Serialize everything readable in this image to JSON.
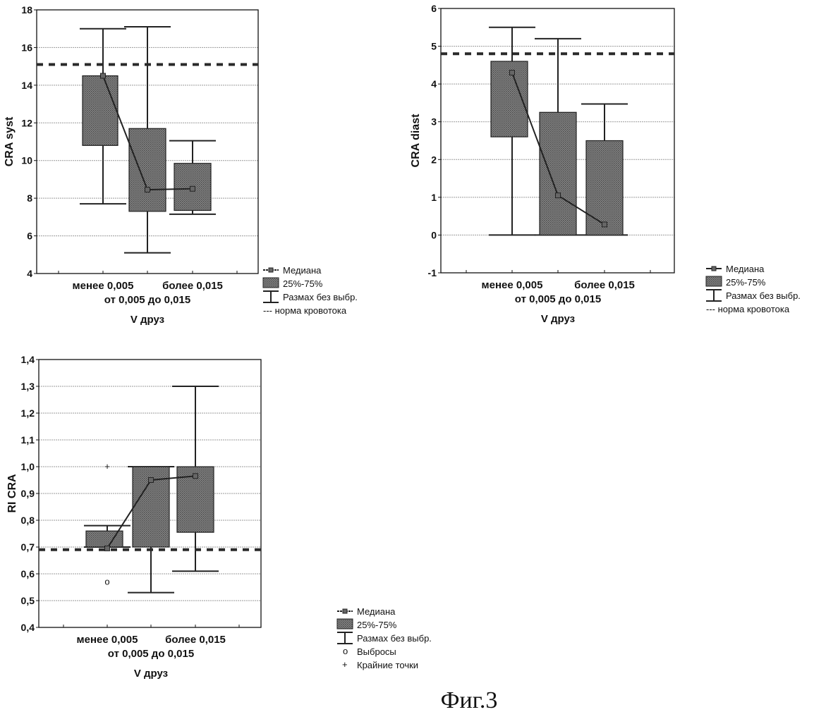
{
  "caption": "Фиг.3",
  "chart_data": [
    {
      "type": "boxplot",
      "ylabel": "CRA syst",
      "xlabel": "V друз",
      "categories": [
        "менее 0,005",
        "от 0,005 до 0,015",
        "более 0,015"
      ],
      "ylim": [
        4,
        18
      ],
      "yticks": [
        4,
        6,
        8,
        10,
        12,
        14,
        16,
        18
      ],
      "ytick_labels": [
        "4",
        "6",
        "8",
        "10",
        "12",
        "14",
        "16",
        "18"
      ],
      "grid": true,
      "norm_line": 15.1,
      "series": [
        {
          "name": "Медиана",
          "values": [
            14.5,
            8.45,
            8.5
          ]
        },
        {
          "name": "25%-75%",
          "q1": [
            10.8,
            7.3,
            7.35
          ],
          "q3": [
            14.5,
            11.7,
            9.85
          ]
        },
        {
          "name": "Размах без выбр.",
          "min": [
            7.7,
            5.1,
            7.15
          ],
          "max": [
            17.0,
            17.1,
            11.05
          ]
        }
      ],
      "legend": [
        "Медиана",
        "25%-75%",
        "Размах без выбр.",
        "--- норма кровотока"
      ],
      "legend_position": "bottom-right"
    },
    {
      "type": "boxplot",
      "ylabel": "CRA diast",
      "xlabel": "V друз",
      "categories": [
        "менее 0,005",
        "от 0,005 до 0,015",
        "более 0,015"
      ],
      "ylim": [
        -1,
        6
      ],
      "yticks": [
        -1,
        0,
        1,
        2,
        3,
        4,
        5,
        6
      ],
      "ytick_labels": [
        "-1",
        "0",
        "1",
        "2",
        "3",
        "4",
        "5",
        "6"
      ],
      "grid": true,
      "norm_line": 4.8,
      "series": [
        {
          "name": "Медиана",
          "values": [
            4.3,
            1.05,
            0.28
          ]
        },
        {
          "name": "25%-75%",
          "q1": [
            2.6,
            0,
            0
          ],
          "q3": [
            4.6,
            3.25,
            2.5
          ]
        },
        {
          "name": "Размах без выбр.",
          "min": [
            0,
            0,
            0
          ],
          "max": [
            5.5,
            5.2,
            3.47
          ]
        }
      ],
      "legend": [
        "Медиана",
        "25%-75%",
        "Размах без выбр.",
        "--- норма кровотока"
      ],
      "legend_position": "bottom-right"
    },
    {
      "type": "boxplot",
      "ylabel": "RI CRA",
      "xlabel": "V друз",
      "categories": [
        "менее 0,005",
        "от 0,005 до 0,015",
        "более 0,015"
      ],
      "ylim": [
        0.4,
        1.4
      ],
      "yticks": [
        0.4,
        0.5,
        0.6,
        0.7,
        0.8,
        0.9,
        1.0,
        1.1,
        1.2,
        1.3,
        1.4
      ],
      "ytick_labels": [
        "0,4",
        "0,5",
        "0,6",
        "0,7",
        "0,8",
        "0,9",
        "1,0",
        "1,1",
        "1,2",
        "1,3",
        "1,4"
      ],
      "grid": true,
      "norm_line": 0.69,
      "series": [
        {
          "name": "Медиана",
          "values": [
            0.695,
            0.95,
            0.965
          ]
        },
        {
          "name": "25%-75%",
          "q1": [
            0.7,
            0.7,
            0.755
          ],
          "q3": [
            0.76,
            1.0,
            1.0
          ]
        },
        {
          "name": "Размах без выбр.",
          "min": [
            0.7,
            0.53,
            0.61
          ],
          "max": [
            0.78,
            1.0,
            1.3
          ]
        },
        {
          "name": "Выбросы",
          "points": [
            [
              0,
              0.57
            ]
          ]
        },
        {
          "name": "Крайние точки",
          "points": [
            [
              0,
              1.0
            ]
          ]
        }
      ],
      "legend": [
        "Медиана",
        "25%-75%",
        "Размах без выбр.",
        "Выбросы",
        "Крайние точки"
      ],
      "legend_position": "bottom-right"
    }
  ],
  "colors": {
    "box": "#7a7a7a",
    "line": "#222222",
    "grid": "#9a9a9a"
  }
}
